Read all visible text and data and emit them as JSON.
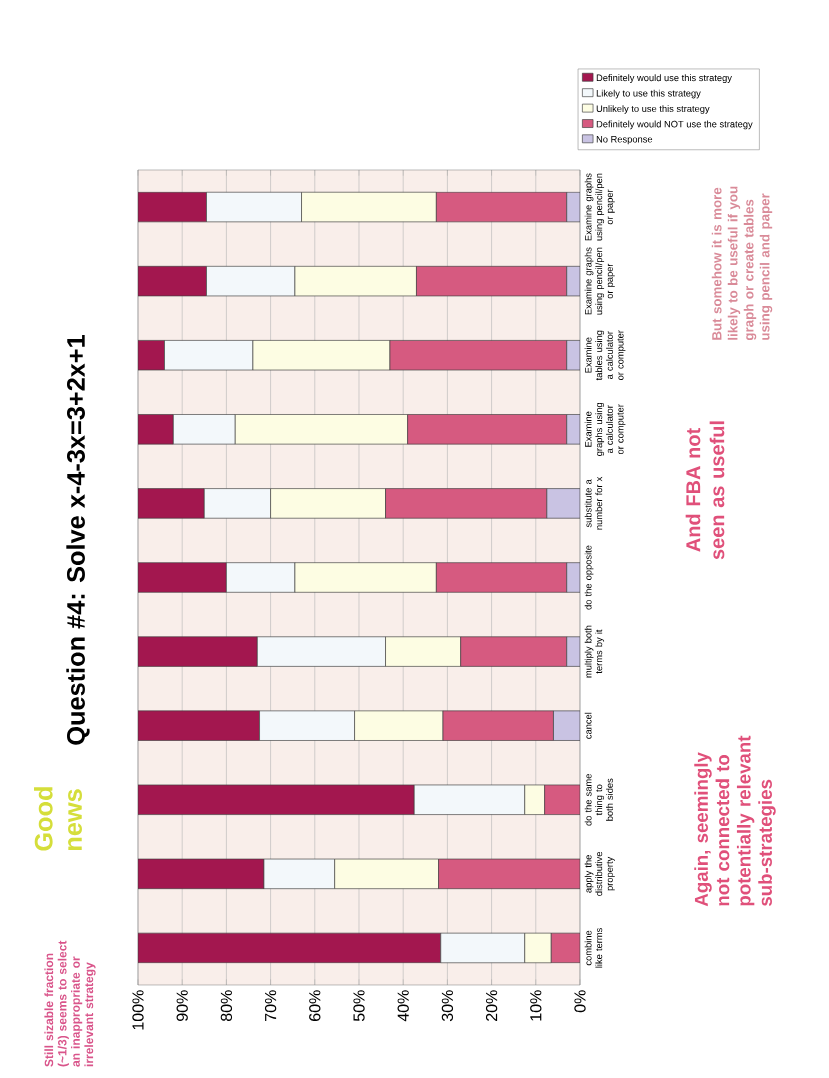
{
  "chart_data": {
    "type": "bar",
    "orientation": "horizontal",
    "stacked": true,
    "title": "Question #4: Solve x-4-3x=3+2x+1",
    "categories": [
      "Examine graphs using pencil/pen or paper",
      "Examine graphs using pencil/pen or paper",
      "Examine tables using a calculator or computer",
      "Examine graphs using a calculator or computer",
      "substitute a number for x",
      "do the opposite",
      "multiply both terms by it",
      "cancel",
      "do the same thing to both sides",
      "apply the distributive property",
      "combine like terms"
    ],
    "series": [
      {
        "name": "No Response",
        "color": "#c9c3e3",
        "values": [
          3,
          3,
          3,
          3,
          7.5,
          3,
          3,
          6,
          0,
          0,
          0
        ]
      },
      {
        "name": "Definitely would NOT use the strategy",
        "color": "#d65a80",
        "values": [
          29.5,
          34,
          40,
          36,
          36.5,
          29.5,
          24,
          25,
          8,
          32,
          6.5
        ]
      },
      {
        "name": "Unlikely to use this strategy",
        "color": "#fdfde3",
        "values": [
          30.5,
          27.5,
          31,
          39,
          26,
          32,
          17,
          20,
          4.5,
          23.5,
          6
        ]
      },
      {
        "name": "Likely to use this strategy",
        "color": "#f3f8fb",
        "values": [
          21.5,
          20,
          20,
          14,
          15,
          15.5,
          29,
          21.5,
          25,
          16,
          19
        ]
      },
      {
        "name": "Definitely would use this strategy",
        "color": "#a3174f",
        "values": [
          15.5,
          15.5,
          6,
          8,
          15,
          20,
          27,
          27.5,
          62.5,
          28.5,
          68.5
        ]
      }
    ],
    "xlim": [
      100,
      0
    ],
    "xticks": [
      {
        "value": 100,
        "label": "100%"
      },
      {
        "value": 90,
        "label": "90%"
      },
      {
        "value": 80,
        "label": "80%"
      },
      {
        "value": 70,
        "label": "70%"
      },
      {
        "value": 60,
        "label": "60%"
      },
      {
        "value": 50,
        "label": "50%"
      },
      {
        "value": 40,
        "label": "40%"
      },
      {
        "value": 30,
        "label": "30%"
      },
      {
        "value": 20,
        "label": "20%"
      },
      {
        "value": 10,
        "label": "10%"
      },
      {
        "value": 0,
        "label": "0%"
      }
    ],
    "grid": "x",
    "legend": "top right",
    "annotations": [
      "Still sizable fraction (~1/3) seems to select an inappropriate or irrelevant strategy",
      "Good news",
      "Again, seemingly not connected to potentially relevant sub-strategies",
      "And FBA not seen as useful",
      "But somehow it is more likely to be useful if you graph or create tables using pencil and paper"
    ]
  }
}
